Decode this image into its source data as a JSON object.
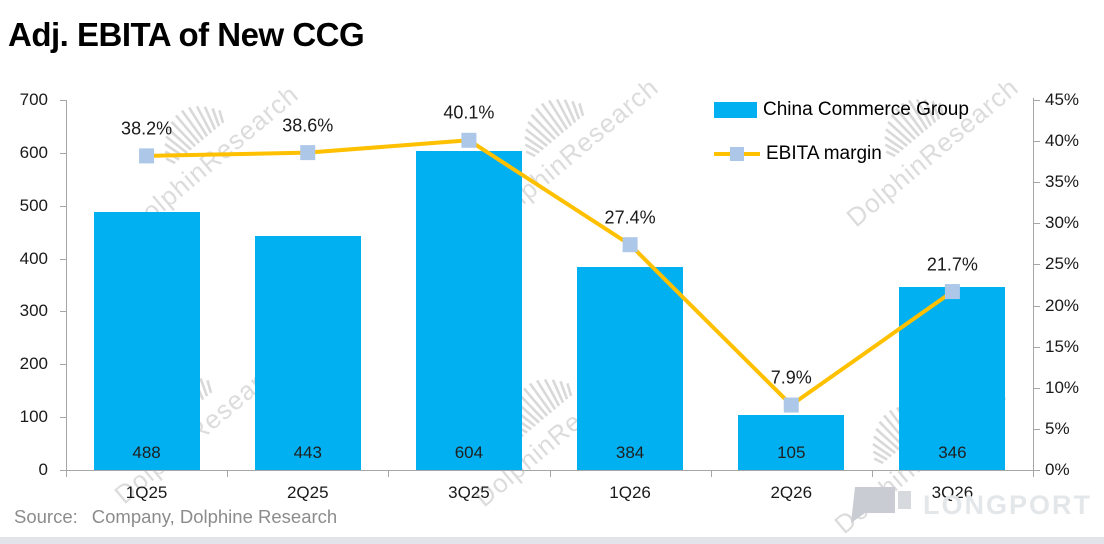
{
  "title": "Adj. EBITA of New CCG",
  "source": {
    "prefix": "Source:",
    "text": "Company, Dolphine Research"
  },
  "watermark": {
    "text": "DolphinResearch",
    "logo_icon": "dolphin-bars-icon"
  },
  "brand": {
    "logo_text": "LONGPORT",
    "logo_icon": "longport-flag-icon"
  },
  "legend": {
    "position": "top-right",
    "items": [
      {
        "label": "China Commerce Group",
        "swatch": "bar"
      },
      {
        "label": "EBITA margin",
        "swatch": "line-square-marker"
      }
    ]
  },
  "colors": {
    "bar": "#00b0f0",
    "line": "#ffc000",
    "marker": "#adc7e8",
    "axis": "#a6a6a6",
    "text": "#1a1a1a",
    "source_text": "#8c8c8c",
    "watermark": "#dcdcdc"
  },
  "chart_data": {
    "type": "bar",
    "subtype": "combo-bar-line-dual-axis",
    "title": "Adj. EBITA of New CCG",
    "categories": [
      "1Q25",
      "2Q25",
      "3Q25",
      "1Q26",
      "2Q26",
      "3Q26"
    ],
    "series": [
      {
        "name": "China Commerce Group",
        "type": "bar",
        "axis": "left",
        "values": [
          488,
          443,
          604,
          384,
          105,
          346
        ],
        "data_labels": [
          "488",
          "443",
          "604",
          "384",
          "105",
          "346"
        ]
      },
      {
        "name": "EBITA margin",
        "type": "line",
        "axis": "right",
        "values": [
          38.2,
          38.6,
          40.1,
          27.4,
          7.9,
          21.7
        ],
        "data_labels": [
          "38.2%",
          "38.6%",
          "40.1%",
          "27.4%",
          "7.9%",
          "21.7%"
        ]
      }
    ],
    "left_axis": {
      "min": 0,
      "max": 700,
      "step": 100,
      "ticks": [
        "0",
        "100",
        "200",
        "300",
        "400",
        "500",
        "600",
        "700"
      ]
    },
    "right_axis": {
      "min": 0,
      "max": 45,
      "step": 5,
      "ticks": [
        "0%",
        "5%",
        "10%",
        "15%",
        "20%",
        "25%",
        "30%",
        "35%",
        "40%",
        "45%"
      ]
    },
    "grid": false,
    "legend_position": "top-right"
  }
}
